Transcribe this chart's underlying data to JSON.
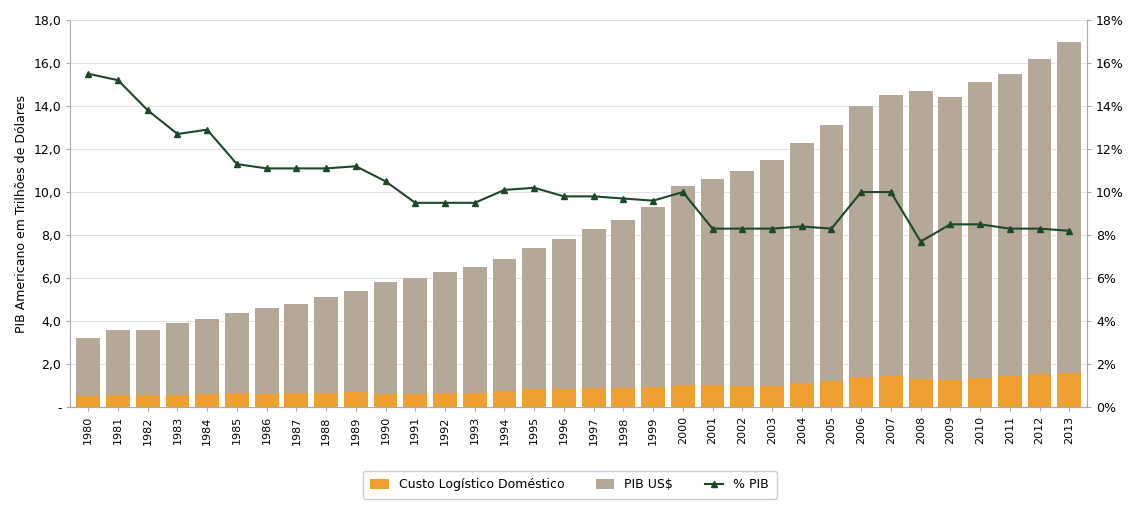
{
  "years": [
    1980,
    1981,
    1982,
    1983,
    1984,
    1985,
    1986,
    1987,
    1988,
    1989,
    1990,
    1991,
    1992,
    1993,
    1994,
    1995,
    1996,
    1997,
    1998,
    1999,
    2000,
    2001,
    2002,
    2003,
    2004,
    2005,
    2006,
    2007,
    2008,
    2009,
    2010,
    2011,
    2012,
    2013
  ],
  "pib_usd": [
    3.2,
    3.6,
    3.6,
    3.9,
    4.1,
    4.4,
    4.6,
    4.8,
    5.1,
    5.4,
    5.8,
    6.0,
    6.3,
    6.5,
    6.9,
    7.4,
    7.8,
    8.3,
    8.7,
    9.3,
    10.3,
    10.6,
    11.0,
    11.5,
    12.3,
    13.1,
    14.0,
    14.5,
    14.7,
    14.4,
    15.1,
    15.5,
    16.2,
    17.0
  ],
  "custo_logistico": [
    0.5,
    0.55,
    0.55,
    0.55,
    0.6,
    0.65,
    0.6,
    0.65,
    0.65,
    0.7,
    0.6,
    0.62,
    0.65,
    0.68,
    0.75,
    0.85,
    0.85,
    0.88,
    0.9,
    0.95,
    1.05,
    1.05,
    1.0,
    1.0,
    1.1,
    1.2,
    1.4,
    1.45,
    1.3,
    1.25,
    1.35,
    1.45,
    1.55,
    1.6
  ],
  "pct_pib": [
    15.5,
    15.2,
    13.8,
    12.7,
    12.9,
    11.3,
    11.1,
    11.1,
    11.1,
    11.2,
    10.5,
    9.5,
    9.5,
    9.5,
    10.1,
    10.2,
    9.8,
    9.8,
    9.7,
    9.6,
    10.0,
    8.3,
    8.3,
    8.3,
    8.4,
    8.3,
    10.0,
    10.0,
    7.7,
    8.5,
    8.5,
    8.3,
    8.3,
    8.2
  ],
  "bar_color_pib": "#b5a898",
  "bar_color_custo": "#f0a030",
  "line_color": "#1a4a2a",
  "ylabel_left": "PIB Americano em Trilhões de Dólares",
  "yticks": [
    0,
    2,
    4,
    6,
    8,
    10,
    12,
    14,
    16,
    18
  ],
  "ytick_labels_left": [
    "-",
    "2,0",
    "4,0",
    "6,0",
    "8,0",
    "10,0",
    "12,0",
    "14,0",
    "16,0",
    "18,0"
  ],
  "ytick_labels_right": [
    "0%",
    "2%",
    "4%",
    "6%",
    "8%",
    "10%",
    "12%",
    "14%",
    "16%",
    "18%"
  ],
  "legend_custo": "Custo Logístico Doméstico",
  "legend_pib": "PIB US$",
  "legend_pct": "% PIB",
  "background_color": "#ffffff",
  "bar_width": 0.8,
  "ylim": [
    0,
    18
  ],
  "figsize": [
    11.39,
    5.05
  ],
  "dpi": 100
}
